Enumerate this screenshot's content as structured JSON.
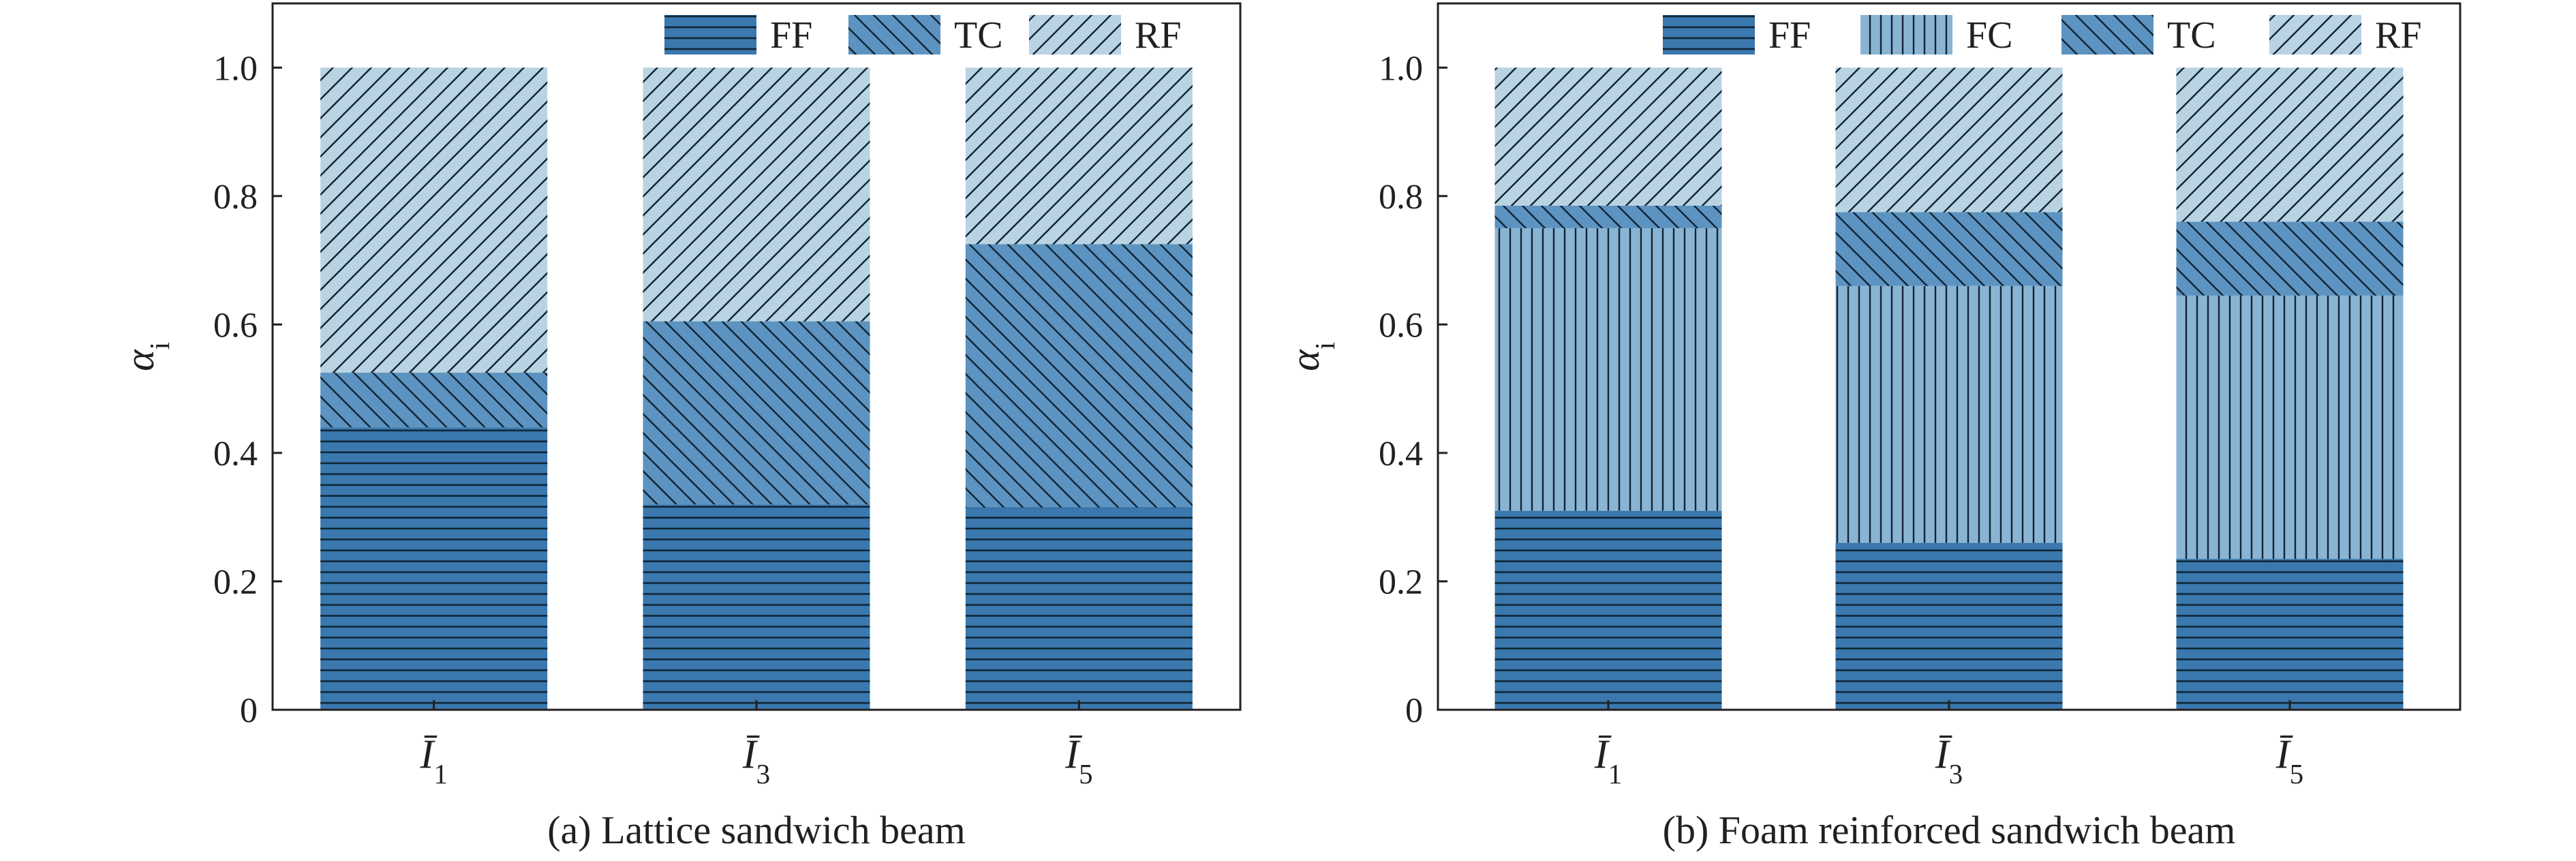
{
  "chart_data": [
    {
      "type": "bar",
      "stacked": true,
      "caption": "(a) Lattice sandwich beam",
      "ylabel": "α_i",
      "categories": [
        "Ī_1",
        "Ī_3",
        "Ī_5"
      ],
      "yticks": [
        "0",
        "0.2",
        "0.4",
        "0.6",
        "0.8",
        "1.0"
      ],
      "ylim": [
        0,
        1.1
      ],
      "legend_position": "top-right",
      "series": [
        {
          "name": "FF",
          "values": [
            0.44,
            0.32,
            0.315
          ],
          "color": "#3a78ae",
          "pattern": "horizontal"
        },
        {
          "name": "TC",
          "values": [
            0.085,
            0.285,
            0.41
          ],
          "color": "#5c93c0",
          "pattern": "backslash"
        },
        {
          "name": "RF",
          "values": [
            0.475,
            0.395,
            0.275
          ],
          "color": "#b9d3e3",
          "pattern": "slash"
        }
      ]
    },
    {
      "type": "bar",
      "stacked": true,
      "caption": "(b) Foam reinforced sandwich beam",
      "ylabel": "α_i",
      "categories": [
        "Ī_1",
        "Ī_3",
        "Ī_5"
      ],
      "yticks": [
        "0",
        "0.2",
        "0.4",
        "0.6",
        "0.8",
        "1.0"
      ],
      "ylim": [
        0,
        1.1
      ],
      "legend_position": "top",
      "series": [
        {
          "name": "FF",
          "values": [
            0.31,
            0.26,
            0.235
          ],
          "color": "#3a78ae",
          "pattern": "horizontal"
        },
        {
          "name": "FC",
          "values": [
            0.44,
            0.4,
            0.41
          ],
          "color": "#8ab4d4",
          "pattern": "vertical"
        },
        {
          "name": "TC",
          "values": [
            0.035,
            0.115,
            0.115
          ],
          "color": "#5c93c0",
          "pattern": "backslash"
        },
        {
          "name": "RF",
          "values": [
            0.215,
            0.225,
            0.24
          ],
          "color": "#b9d3e3",
          "pattern": "slash"
        }
      ]
    }
  ]
}
